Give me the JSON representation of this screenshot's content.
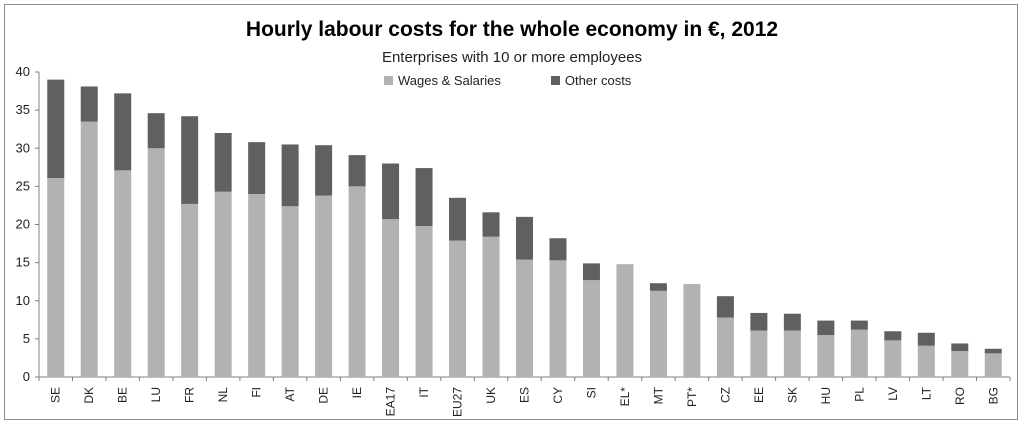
{
  "chart_data": {
    "type": "bar",
    "stacked": true,
    "title": "Hourly labour costs for the whole economy in €, 2012",
    "subtitle": "Enterprises with 10 or more employees",
    "ylim": [
      0,
      40
    ],
    "yticks": [
      0,
      5,
      10,
      15,
      20,
      25,
      30,
      35,
      40
    ],
    "grid": false,
    "legend_position": "top-center",
    "categories": [
      "SE",
      "DK",
      "BE",
      "LU",
      "FR",
      "NL",
      "FI",
      "AT",
      "DE",
      "IE",
      "EA17",
      "IT",
      "EU27",
      "UK",
      "ES",
      "CY",
      "SI",
      "EL*",
      "MT",
      "PT*",
      "CZ",
      "EE",
      "SK",
      "HU",
      "PL",
      "LV",
      "LT",
      "RO",
      "BG"
    ],
    "series": [
      {
        "name": "Wages & Salaries",
        "color": "#b2b2b2",
        "values": [
          26.1,
          33.5,
          27.1,
          30.0,
          22.7,
          24.3,
          24.0,
          22.4,
          23.8,
          25.0,
          20.7,
          19.8,
          17.9,
          18.4,
          15.4,
          15.3,
          12.7,
          14.8,
          11.3,
          12.2,
          7.8,
          6.1,
          6.1,
          5.5,
          6.2,
          4.8,
          4.1,
          3.4,
          3.1
        ]
      },
      {
        "name": "Other costs",
        "color": "#606060",
        "values": [
          12.9,
          4.6,
          10.1,
          4.6,
          11.5,
          7.7,
          6.8,
          8.1,
          6.6,
          4.1,
          7.3,
          7.6,
          5.6,
          3.2,
          5.6,
          2.9,
          2.2,
          0.0,
          1.0,
          0.0,
          2.8,
          2.3,
          2.2,
          1.9,
          1.2,
          1.2,
          1.7,
          1.0,
          0.6
        ]
      }
    ]
  }
}
